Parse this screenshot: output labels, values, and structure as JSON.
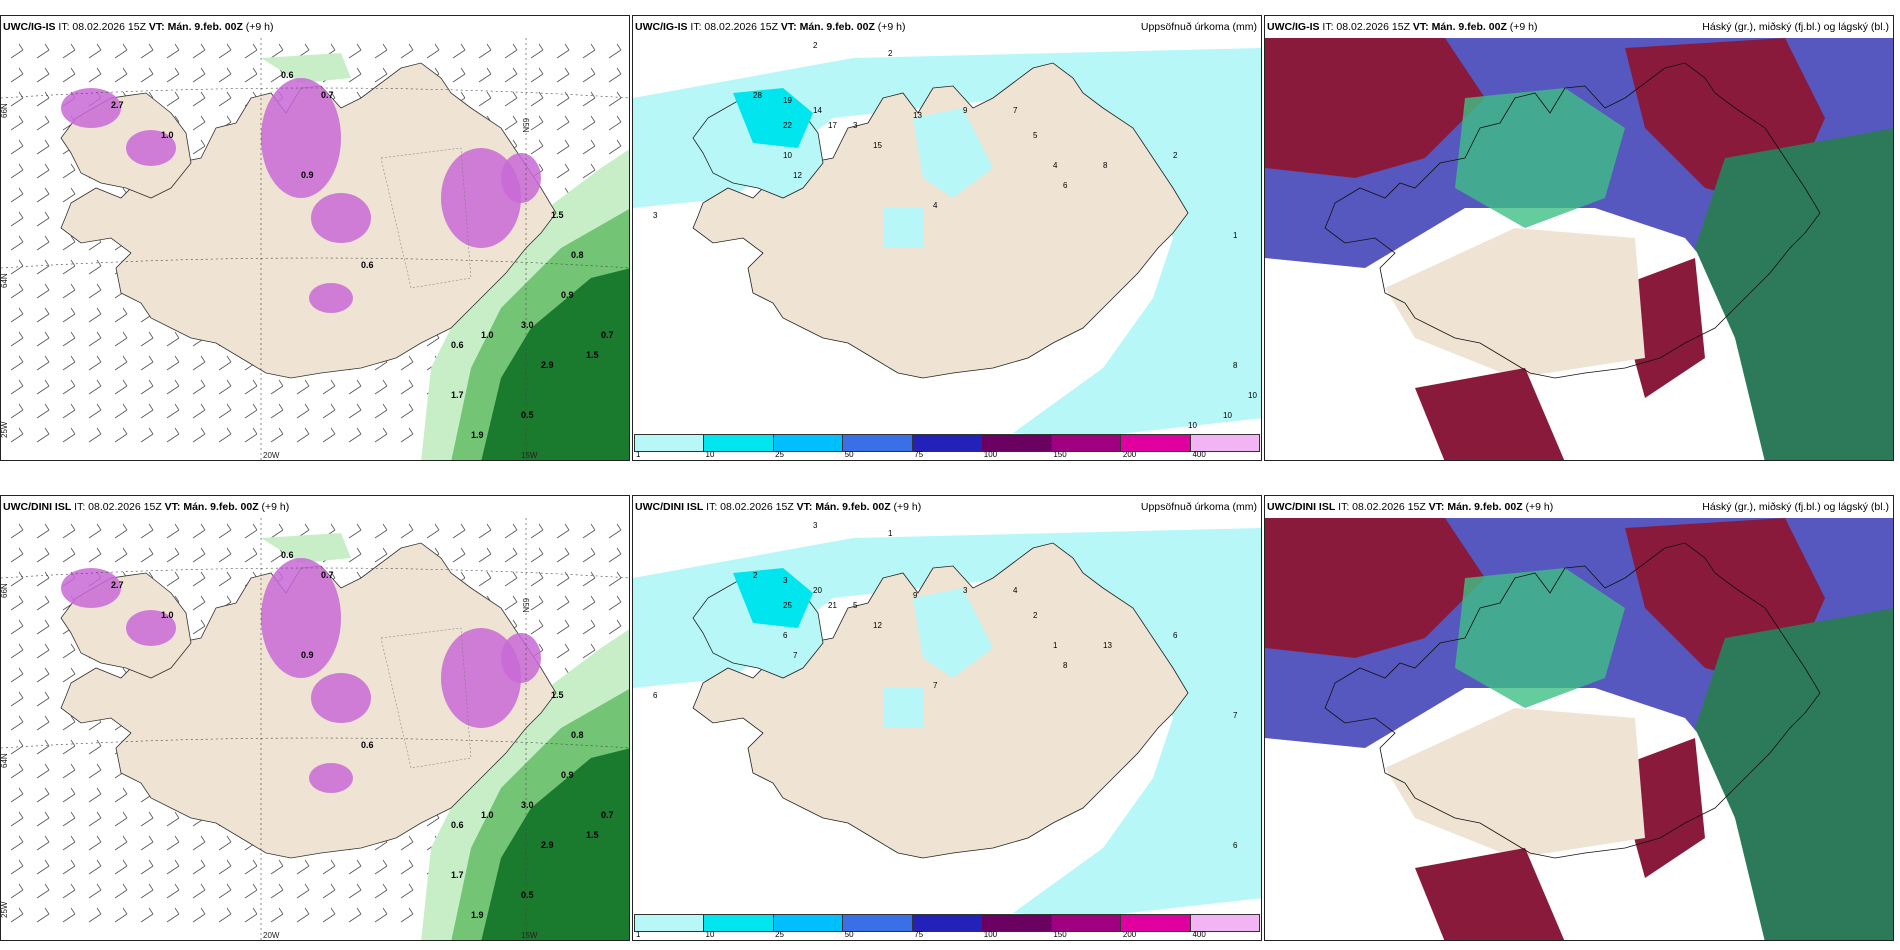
{
  "panels": [
    {
      "model": "UWC/IG-IS",
      "it": "IT: 08.02.2026 15Z",
      "vt_label": "VT:",
      "vt": "Mán. 9.feb. 00Z",
      "lead": "(+9 h)",
      "title_right": "",
      "kind": "wind",
      "axis_labels": [
        "66N",
        "65N",
        "64N",
        "25W",
        "20W",
        "15W"
      ]
    },
    {
      "model": "UWC/IG-IS",
      "it": "IT: 08.02.2026 15Z",
      "vt_label": "VT:",
      "vt": "Mán. 9.feb. 00Z",
      "lead": "(+9 h)",
      "title_right": "Uppsöfnuð úrkoma (mm)",
      "kind": "precip",
      "values": [
        "2",
        "2",
        "28",
        "19",
        "22",
        "17",
        "14",
        "15",
        "13",
        "9",
        "7",
        "3",
        "12",
        "10",
        "4",
        "5",
        "6",
        "8",
        "2",
        "1",
        "3",
        "4",
        "8",
        "10",
        "10",
        "10"
      ]
    },
    {
      "model": "UWC/IG-IS",
      "it": "IT: 08.02.2026 15Z",
      "vt_label": "VT:",
      "vt": "Mán. 9.feb. 00Z",
      "lead": "(+9 h)",
      "title_right": "Háský (gr.), miðský (fj.bl.) og lágský (bl.)",
      "kind": "cloud"
    },
    {
      "model": "UWC/DINI ISL",
      "it": "IT: 08.02.2026 15Z",
      "vt_label": "VT:",
      "vt": "Mán. 9.feb. 00Z",
      "lead": "(+9 h)",
      "title_right": "",
      "kind": "wind",
      "axis_labels": [
        "66N",
        "65N",
        "64N",
        "25W",
        "20W",
        "15W"
      ]
    },
    {
      "model": "UWC/DINI ISL",
      "it": "IT: 08.02.2026 15Z",
      "vt_label": "VT:",
      "vt": "Mán. 9.feb. 00Z",
      "lead": "(+9 h)",
      "title_right": "Uppsöfnuð úrkoma (mm)",
      "kind": "precip",
      "values": [
        "3",
        "1",
        "2",
        "3",
        "25",
        "21",
        "20",
        "12",
        "9",
        "3",
        "4",
        "5",
        "7",
        "6",
        "1",
        "2",
        "8",
        "13",
        "6",
        "7",
        "6",
        "7",
        "6"
      ]
    },
    {
      "model": "UWC/DINI ISL",
      "it": "IT: 08.02.2026 15Z",
      "vt_label": "VT:",
      "vt": "Mán. 9.feb. 00Z",
      "lead": "(+9 h)",
      "title_right": "Háský (gr.), miðský (fj.bl.) og lágský (bl.)",
      "kind": "cloud"
    }
  ],
  "colorbar": {
    "ticks": [
      "1",
      "10",
      "25",
      "50",
      "75",
      "100",
      "150",
      "200",
      "400"
    ],
    "colors": [
      "#b8f7f7",
      "#00e5ee",
      "#00bfff",
      "#3a6fe8",
      "#2222bb",
      "#6a0060",
      "#a0007f",
      "#e000a0",
      "#f2b4f2"
    ]
  },
  "wind_precip_labels": [
    "0.6",
    "0.7",
    "2.7",
    "1.0",
    "0.9",
    "0.6",
    "1.5",
    "0.8",
    "3.0",
    "2.9",
    "1.7",
    "1.9",
    "1.0",
    "0.9",
    "1.5",
    "0.7",
    "0.6",
    "0.5"
  ],
  "colors": {
    "land": "#efe3d3",
    "sea": "#ffffff",
    "precip_light": "#b8f7f7",
    "green_light": "#c8eec8",
    "green_mid": "#74c476",
    "green_dark": "#1a7a2e",
    "purple": "#c86ad6",
    "cloud_high": "#8a1a3c",
    "cloud_mid": "#5757c0",
    "cloud_low": "#2d7a5a"
  }
}
